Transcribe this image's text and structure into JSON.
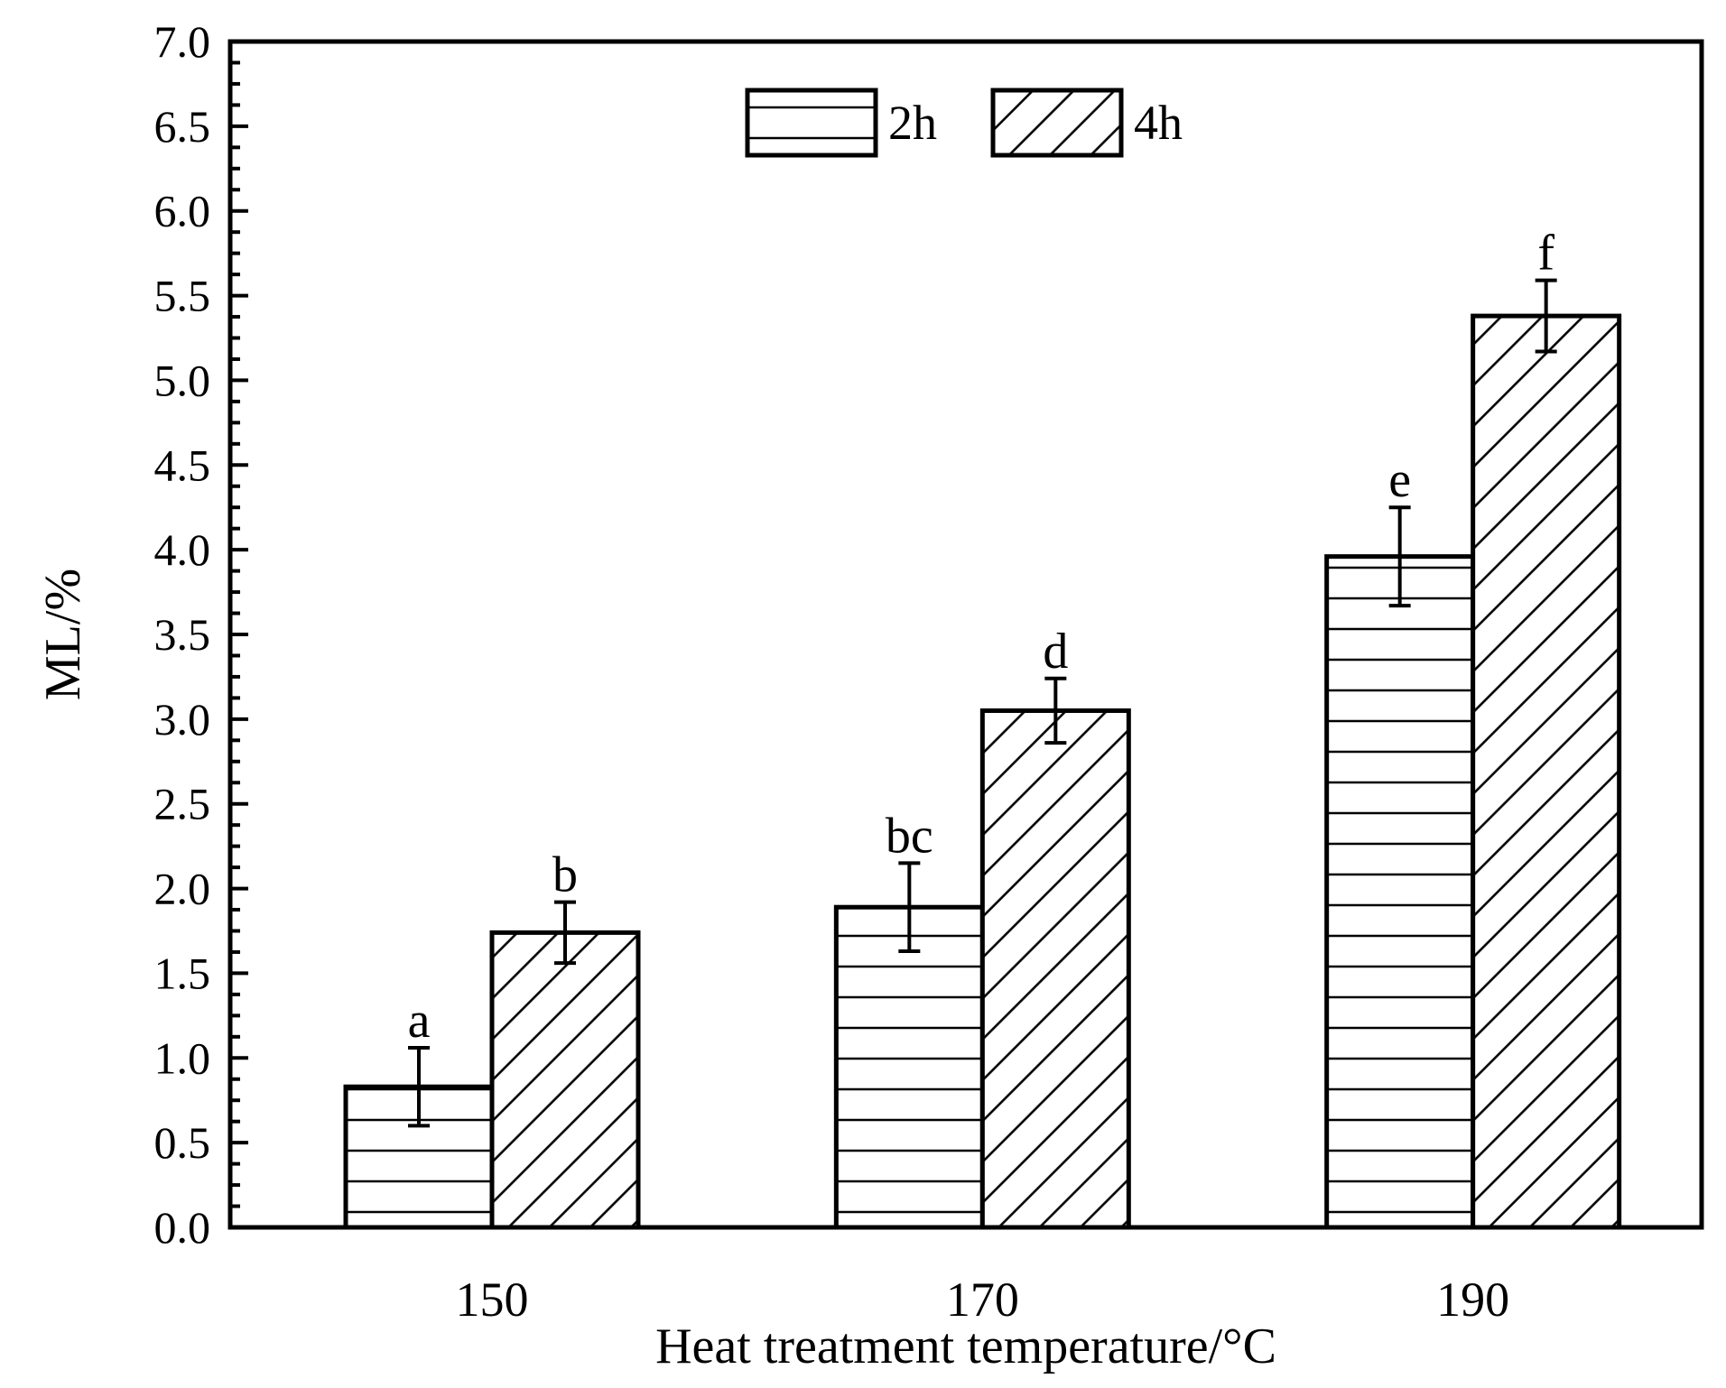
{
  "chart_data": {
    "type": "bar",
    "title": "",
    "xlabel": "Heat treatment temperature/°C",
    "ylabel": "ML/%",
    "categories": [
      "150",
      "170",
      "190"
    ],
    "ylim": [
      0,
      7.0
    ],
    "yticks": [
      "0.0",
      "0.5",
      "1.0",
      "1.5",
      "2.0",
      "2.5",
      "3.0",
      "3.5",
      "4.0",
      "4.5",
      "5.0",
      "5.5",
      "6.0",
      "6.5",
      "7.0"
    ],
    "legend_position": "top-center",
    "series": [
      {
        "name": "2h",
        "pattern": "horizontal-lines",
        "values": [
          0.83,
          1.89,
          3.96
        ],
        "errors": [
          0.23,
          0.26,
          0.29
        ],
        "letters": [
          "a",
          "bc",
          "e"
        ]
      },
      {
        "name": "4h",
        "pattern": "diagonal-lines",
        "values": [
          1.74,
          3.05,
          5.38
        ],
        "errors": [
          0.18,
          0.19,
          0.21
        ],
        "letters": [
          "b",
          "d",
          "f"
        ]
      }
    ]
  }
}
